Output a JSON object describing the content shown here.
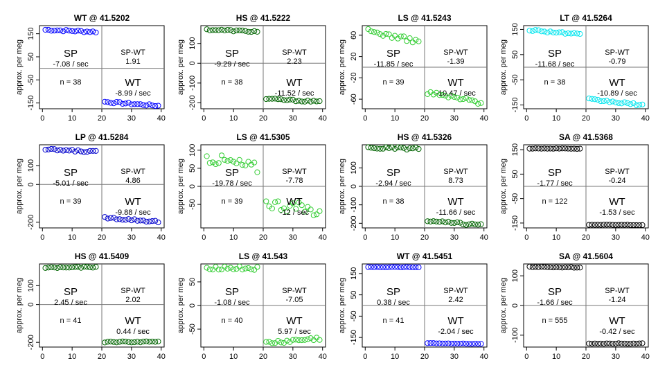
{
  "chart_data": [
    {
      "type": "scatter",
      "title": "WT @ 41.5202",
      "ylabel": "approx. per meg",
      "xlim": [
        0,
        40
      ],
      "ylim": [
        -175,
        185
      ],
      "yticks": [
        150,
        50,
        -50,
        -150
      ],
      "xticks": [
        0,
        10,
        20,
        30,
        40
      ],
      "color": "#0000ff",
      "labels": {
        "sp": "SP",
        "sp_rate": "-7.08 / sec",
        "spwt": "SP-WT",
        "spwt_val": "1.91",
        "n": "n = 38",
        "wt": "WT",
        "wt_rate": "-8.99 / sec"
      },
      "sp_start": 167,
      "sp_end": 158,
      "wt_start": -145,
      "wt_end": -162,
      "noise": 4
    },
    {
      "type": "scatter",
      "title": "HS @ 41.5222",
      "ylabel": "approx. per meg",
      "xlim": [
        0,
        40
      ],
      "ylim": [
        -230,
        190
      ],
      "yticks": [
        100,
        0,
        -100,
        -200
      ],
      "xticks": [
        0,
        10,
        20,
        30,
        40
      ],
      "color": "#006400",
      "labels": {
        "sp": "SP",
        "sp_rate": "-9.29 / sec",
        "spwt": "SP-WT",
        "spwt_val": "2.23",
        "n": "n = 38",
        "wt": "WT",
        "wt_rate": "-11.52 / sec"
      },
      "sp_start": 170,
      "sp_end": 160,
      "wt_start": -180,
      "wt_end": -195,
      "noise": 4
    },
    {
      "type": "scatter",
      "title": "LS @ 41.5243",
      "ylabel": "approx. per meg",
      "xlim": [
        0,
        40
      ],
      "ylim": [
        -78,
        78
      ],
      "yticks": [
        60,
        20,
        -20,
        -60
      ],
      "xticks": [
        0,
        10,
        20,
        30,
        40
      ],
      "color": "#32cd32",
      "labels": {
        "sp": "SP",
        "sp_rate": "-11.85 / sec",
        "spwt": "SP-WT",
        "spwt_val": "-1.39",
        "n": "n = 39",
        "wt": "WT",
        "wt_rate": "-10.47 / sec"
      },
      "sp_start": 68,
      "sp_end": 48,
      "wt_start": -48,
      "wt_end": -66,
      "noise": 4
    },
    {
      "type": "scatter",
      "title": "LT @ 41.5264",
      "ylabel": "approx. per meg",
      "xlim": [
        0,
        40
      ],
      "ylim": [
        -165,
        165
      ],
      "yticks": [
        150,
        50,
        -50,
        -150
      ],
      "xticks": [
        0,
        10,
        20,
        30,
        40
      ],
      "color": "#00e5ee",
      "labels": {
        "sp": "SP",
        "sp_rate": "-11.68 / sec",
        "spwt": "SP-WT",
        "spwt_val": "-0.79",
        "n": "n = 38",
        "wt": "WT",
        "wt_rate": "-10.89 / sec"
      },
      "sp_start": 148,
      "sp_end": 130,
      "wt_start": -128,
      "wt_end": -150,
      "noise": 4
    },
    {
      "type": "scatter",
      "title": "LP @ 41.5284",
      "ylabel": "approx. per meg",
      "xlim": [
        0,
        40
      ],
      "ylim": [
        -230,
        210
      ],
      "yticks": [
        100,
        0,
        -200
      ],
      "xticks": [
        0,
        10,
        20,
        30,
        40
      ],
      "color": "#0000cd",
      "labels": {
        "sp": "SP",
        "sp_rate": "-5.01 / sec",
        "spwt": "SP-WT",
        "spwt_val": "4.86",
        "n": "n = 39",
        "wt": "WT",
        "wt_rate": "-9.88 / sec"
      },
      "sp_start": 185,
      "sp_end": 173,
      "wt_start": -175,
      "wt_end": -197,
      "noise": 5
    },
    {
      "type": "scatter",
      "title": "LS @ 41.5305",
      "ylabel": "approx. per meg",
      "xlim": [
        0,
        40
      ],
      "ylim": [
        -115,
        115
      ],
      "yticks": [
        100,
        50,
        0,
        -50
      ],
      "xticks": [
        0,
        10,
        20,
        30,
        40
      ],
      "color": "#32cd32",
      "labels": {
        "sp": "SP",
        "sp_rate": "-19.78 / sec",
        "spwt": "SP-WT",
        "spwt_val": "-7.78",
        "n": "n = 39",
        "wt": "WT",
        "wt_rate": "-12 / sec"
      },
      "sp_start": 80,
      "sp_end": 50,
      "wt_start": -45,
      "wt_end": -70,
      "noise": 16
    },
    {
      "type": "scatter",
      "title": "HS @ 41.5326",
      "ylabel": "approx. per meg",
      "xlim": [
        0,
        40
      ],
      "ylim": [
        -225,
        225
      ],
      "yticks": [
        100,
        0,
        -100,
        -200
      ],
      "xticks": [
        0,
        10,
        20,
        30,
        40
      ],
      "color": "#006400",
      "labels": {
        "sp": "SP",
        "sp_rate": "-2.94 / sec",
        "spwt": "SP-WT",
        "spwt_val": "8.73",
        "n": "n = 38",
        "wt": "WT",
        "wt_rate": "-11.66 / sec"
      },
      "sp_start": 208,
      "sp_end": 204,
      "wt_start": -188,
      "wt_end": -210,
      "noise": 6
    },
    {
      "type": "scatter",
      "title": "SA @ 41.5368",
      "ylabel": "approx. per meg",
      "xlim": [
        0,
        40
      ],
      "ylim": [
        -170,
        170
      ],
      "yticks": [
        150,
        50,
        -50,
        -150
      ],
      "xticks": [
        0,
        10,
        20,
        30,
        40
      ],
      "color": "#000000",
      "labels": {
        "sp": "SP",
        "sp_rate": "-1.77 / sec",
        "spwt": "SP-WT",
        "spwt_val": "-0.24",
        "n": "n = 122",
        "wt": "WT",
        "wt_rate": "-1.53 / sec"
      },
      "sp_start": 155,
      "sp_end": 154,
      "wt_start": -157,
      "wt_end": -158,
      "noise": 1
    },
    {
      "type": "scatter",
      "title": "HS @ 41.5409",
      "ylabel": "approx. per meg",
      "xlim": [
        0,
        40
      ],
      "ylim": [
        -225,
        215
      ],
      "yticks": [
        100,
        0,
        -200
      ],
      "xticks": [
        0,
        10,
        20,
        30,
        40
      ],
      "color": "#006400",
      "labels": {
        "sp": "SP",
        "sp_rate": "2.45 / sec",
        "spwt": "SP-WT",
        "spwt_val": "2.02",
        "n": "n = 41",
        "wt": "WT",
        "wt_rate": "0.44 / sec"
      },
      "sp_start": 195,
      "sp_end": 198,
      "wt_start": -198,
      "wt_end": -197,
      "noise": 3
    },
    {
      "type": "scatter",
      "title": "LS @ 41.543",
      "ylabel": "approx. per meg",
      "xlim": [
        0,
        40
      ],
      "ylim": [
        -88,
        88
      ],
      "yticks": [
        50,
        0,
        -50
      ],
      "xticks": [
        0,
        10,
        20,
        30,
        40
      ],
      "color": "#32cd32",
      "labels": {
        "sp": "SP",
        "sp_rate": "-1.08 / sec",
        "spwt": "SP-WT",
        "spwt_val": "-7.05",
        "n": "n = 40",
        "wt": "WT",
        "wt_rate": "5.97 / sec"
      },
      "sp_start": 80,
      "sp_end": 78,
      "wt_start": -80,
      "wt_end": -70,
      "noise": 4
    },
    {
      "type": "scatter",
      "title": "WT @ 41.5451",
      "ylabel": "approx. per meg",
      "xlim": [
        0,
        40
      ],
      "ylim": [
        -195,
        195
      ],
      "yticks": [
        150,
        50,
        -50,
        -150
      ],
      "xticks": [
        0,
        10,
        20,
        30,
        40
      ],
      "color": "#0000ff",
      "labels": {
        "sp": "SP",
        "sp_rate": "0.38 / sec",
        "spwt": "SP-WT",
        "spwt_val": "2.42",
        "n": "n = 41",
        "wt": "WT",
        "wt_rate": "-2.04 / sec"
      },
      "sp_start": 180,
      "sp_end": 180,
      "wt_start": -177,
      "wt_end": -180,
      "noise": 1
    },
    {
      "type": "scatter",
      "title": "SA @ 41.5604",
      "ylabel": "approx. per meg",
      "xlim": [
        0,
        40
      ],
      "ylim": [
        -140,
        140
      ],
      "yticks": [
        100,
        0,
        -100
      ],
      "xticks": [
        0,
        10,
        20,
        30,
        40
      ],
      "color": "#000000",
      "labels": {
        "sp": "SP",
        "sp_rate": "-1.66 / sec",
        "spwt": "SP-WT",
        "spwt_val": "-1.24",
        "n": "n = 555",
        "wt": "WT",
        "wt_rate": "-0.42 / sec"
      },
      "sp_start": 130,
      "sp_end": 128,
      "wt_start": -128,
      "wt_end": -128,
      "noise": 1
    }
  ]
}
